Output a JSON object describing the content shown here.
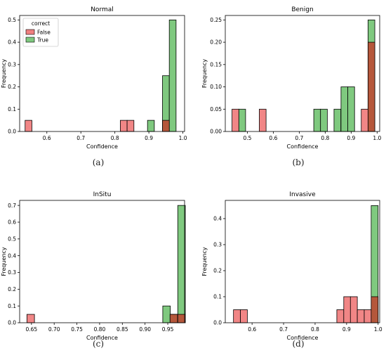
{
  "legend": {
    "title": "correct",
    "entries": [
      {
        "name": "False",
        "color": "#f08080"
      },
      {
        "name": "True",
        "color": "#7fc97f"
      }
    ]
  },
  "colors": {
    "false": "#f08080",
    "true": "#7fc97f",
    "overlap": "#b5573b",
    "edge": "#000000"
  },
  "chart_data": [
    {
      "type": "bar",
      "panel_tag": "(a)",
      "title": "Normal",
      "xlabel": "Confidence",
      "ylabel": "Frequency",
      "xlim": [
        0.52,
        1.005
      ],
      "ylim": [
        0,
        0.52
      ],
      "xticks": [
        0.6,
        0.7,
        0.8,
        0.9,
        1.0
      ],
      "xtick_labels": [
        "0.6",
        "0.7",
        "0.8",
        "0.9",
        "1.0"
      ],
      "yticks": [
        0,
        0.1,
        0.2,
        0.3,
        0.4,
        0.5
      ],
      "ytick_labels": [
        "0.0",
        "0.1",
        "0.2",
        "0.3",
        "0.4",
        "0.5"
      ],
      "bin_width": 0.02,
      "series": [
        {
          "name": "False",
          "bins": [
            [
              0.536,
              0.05
            ],
            [
              0.816,
              0.05
            ],
            [
              0.836,
              0.05
            ],
            [
              0.94,
              0.05
            ]
          ]
        },
        {
          "name": "True",
          "bins": [
            [
              0.896,
              0.05
            ],
            [
              0.94,
              0.25
            ],
            [
              0.96,
              0.5
            ]
          ]
        }
      ],
      "legend": true
    },
    {
      "type": "bar",
      "panel_tag": "(b)",
      "title": "Benign",
      "xlabel": "Confidence",
      "ylabel": "Frequency",
      "xlim": [
        0.415,
        1.01
      ],
      "ylim": [
        0,
        0.26
      ],
      "xticks": [
        0.5,
        0.6,
        0.7,
        0.8,
        0.9,
        1.0
      ],
      "xtick_labels": [
        "0.5",
        "0.6",
        "0.7",
        "0.8",
        "0.9",
        "1.0"
      ],
      "yticks": [
        0,
        0.05,
        0.1,
        0.15,
        0.2,
        0.25
      ],
      "ytick_labels": [
        "0.00",
        "0.05",
        "0.10",
        "0.15",
        "0.20",
        "0.25"
      ],
      "bin_width": 0.0262,
      "series": [
        {
          "name": "False",
          "bins": [
            [
              0.441,
              0.05
            ],
            [
              0.546,
              0.05
            ],
            [
              0.939,
              0.05
            ],
            [
              0.965,
              0.2
            ]
          ]
        },
        {
          "name": "True",
          "bins": [
            [
              0.467,
              0.05
            ],
            [
              0.756,
              0.05
            ],
            [
              0.782,
              0.05
            ],
            [
              0.834,
              0.05
            ],
            [
              0.861,
              0.1
            ],
            [
              0.887,
              0.1
            ],
            [
              0.965,
              0.25
            ]
          ]
        }
      ],
      "legend": false
    },
    {
      "type": "bar",
      "panel_tag": "(c)",
      "title": "InSitu",
      "xlabel": "Confidence",
      "ylabel": "Frequency",
      "xlim": [
        0.624,
        0.987
      ],
      "ylim": [
        0,
        0.73
      ],
      "xticks": [
        0.65,
        0.7,
        0.75,
        0.8,
        0.85,
        0.9,
        0.95
      ],
      "xtick_labels": [
        "0.65",
        "0.70",
        "0.75",
        "0.80",
        "0.85",
        "0.90",
        "0.95"
      ],
      "yticks": [
        0,
        0.1,
        0.2,
        0.3,
        0.4,
        0.5,
        0.6,
        0.7
      ],
      "ytick_labels": [
        "0.0",
        "0.1",
        "0.2",
        "0.3",
        "0.4",
        "0.5",
        "0.6",
        "0.7"
      ],
      "bin_width": 0.0166,
      "series": [
        {
          "name": "False",
          "bins": [
            [
              0.64,
              0.05
            ],
            [
              0.955,
              0.05
            ],
            [
              0.972,
              0.05
            ]
          ]
        },
        {
          "name": "True",
          "bins": [
            [
              0.939,
              0.1
            ],
            [
              0.955,
              0.05
            ],
            [
              0.972,
              0.7
            ]
          ]
        }
      ],
      "legend": false
    },
    {
      "type": "bar",
      "panel_tag": "(d)",
      "title": "Invasive",
      "xlabel": "Confidence",
      "ylabel": "Frequency",
      "xlim": [
        0.515,
        1.005
      ],
      "ylim": [
        0,
        0.47
      ],
      "xticks": [
        0.6,
        0.7,
        0.8,
        0.9,
        1.0
      ],
      "xtick_labels": [
        "0.6",
        "0.7",
        "0.8",
        "0.9",
        "1.0"
      ],
      "yticks": [
        0,
        0.1,
        0.2,
        0.3,
        0.4
      ],
      "ytick_labels": [
        "0.0",
        "0.1",
        "0.2",
        "0.3",
        "0.4"
      ],
      "bin_width": 0.022,
      "series": [
        {
          "name": "False",
          "bins": [
            [
              0.541,
              0.05
            ],
            [
              0.563,
              0.05
            ],
            [
              0.869,
              0.05
            ],
            [
              0.891,
              0.1
            ],
            [
              0.912,
              0.1
            ],
            [
              0.934,
              0.05
            ],
            [
              0.956,
              0.05
            ],
            [
              0.978,
              0.1
            ]
          ]
        },
        {
          "name": "True",
          "bins": [
            [
              0.978,
              0.45
            ]
          ]
        }
      ],
      "legend": false
    }
  ]
}
